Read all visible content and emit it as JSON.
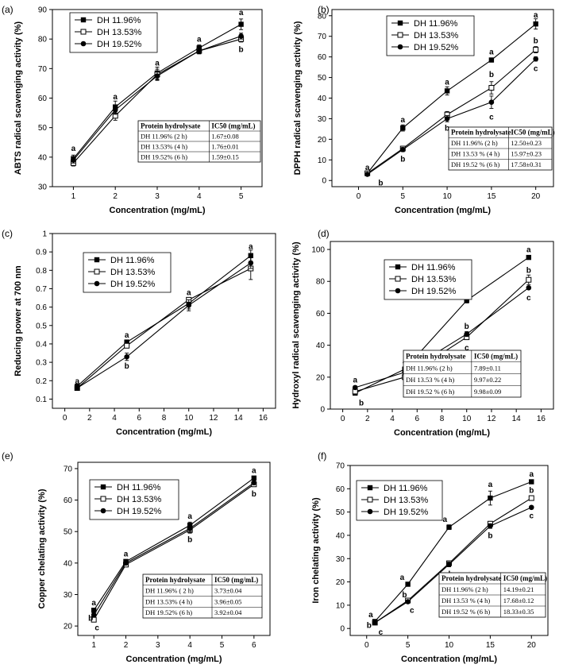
{
  "chart_data": [
    {
      "panel_label": "(a)",
      "type": "line",
      "xlabel": "Concentration (mg/mL)",
      "ylabel": "ABTS radical scavenging activity (%)",
      "xlim": [
        0.5,
        5.5
      ],
      "ylim": [
        30,
        90
      ],
      "xticks": [
        1,
        2,
        3,
        4,
        5
      ],
      "yticks": [
        30,
        40,
        50,
        60,
        70,
        80,
        90
      ],
      "x": [
        1,
        2,
        3,
        4,
        5
      ],
      "series": [
        {
          "name": "DH 11.96%",
          "marker": "square-filled",
          "values": [
            39.5,
            57,
            68.5,
            77,
            85
          ],
          "errors": [
            1.2,
            2,
            2,
            1,
            1.8
          ]
        },
        {
          "name": "DH 13.53%",
          "marker": "square-open",
          "values": [
            38,
            54,
            68,
            76,
            80
          ],
          "errors": [
            1,
            1.5,
            1.8,
            1,
            1
          ]
        },
        {
          "name": "DH 19.52%",
          "marker": "circle-filled",
          "values": [
            39,
            56,
            67.5,
            76,
            81
          ],
          "errors": [
            1,
            1.5,
            1.5,
            1,
            1
          ]
        }
      ],
      "sig_labels": [
        {
          "x": 1,
          "y": 43,
          "text": "a"
        },
        {
          "x": 2,
          "y": 60.5,
          "text": "a"
        },
        {
          "x": 3,
          "y": 72,
          "text": "a"
        },
        {
          "x": 4,
          "y": 80,
          "text": "a"
        },
        {
          "x": 5,
          "y": 89,
          "text": "a"
        },
        {
          "x": 5,
          "y": 76.5,
          "text": "b"
        }
      ],
      "legend": {
        "position": "top-left"
      },
      "table": {
        "position": "bottom-right",
        "headers": [
          "Protein hydrolysate",
          "IC50 (mg/mL)"
        ],
        "rows": [
          [
            "DH 11.96% (2 h)",
            "1.67±0.08"
          ],
          [
            "DH 13.53% (4 h)",
            "1.76±0.01"
          ],
          [
            "DH 19.52% (6 h)",
            "1.59±0.15"
          ]
        ]
      }
    },
    {
      "panel_label": "(b)",
      "type": "line",
      "xlabel": "Concentration (mg/mL)",
      "ylabel": "DPPH radical scavenging activity (%)",
      "xlim": [
        -3,
        22
      ],
      "ylim": [
        -3,
        83
      ],
      "xticks": [
        0,
        5,
        10,
        15,
        20
      ],
      "yticks": [
        0,
        10,
        20,
        30,
        40,
        50,
        60,
        70,
        80
      ],
      "x": [
        1,
        5,
        10,
        15,
        20
      ],
      "series": [
        {
          "name": "DH 11.96%",
          "marker": "square-filled",
          "values": [
            3.5,
            25.5,
            43.5,
            58.5,
            76
          ],
          "errors": [
            0.5,
            1.5,
            2,
            1,
            2.5
          ]
        },
        {
          "name": "DH 13.53%",
          "marker": "square-open",
          "values": [
            3.5,
            15.5,
            32,
            45,
            63.5
          ],
          "errors": [
            0.5,
            1,
            1.5,
            3,
            1.5
          ]
        },
        {
          "name": "DH 19.52%",
          "marker": "circle-filled",
          "values": [
            3,
            15,
            30,
            38,
            59
          ],
          "errors": [
            0.5,
            1,
            1.5,
            3,
            1
          ]
        }
      ],
      "sig_labels": [
        {
          "x": 1,
          "y": 6.5,
          "text": "a"
        },
        {
          "x": 2.5,
          "y": -1,
          "text": "b"
        },
        {
          "x": 5,
          "y": 29.5,
          "text": "a"
        },
        {
          "x": 5,
          "y": 10.5,
          "text": "b"
        },
        {
          "x": 10,
          "y": 48,
          "text": "a"
        },
        {
          "x": 10,
          "y": 25.5,
          "text": "b"
        },
        {
          "x": 15,
          "y": 62.5,
          "text": "a"
        },
        {
          "x": 15,
          "y": 51.5,
          "text": "b"
        },
        {
          "x": 15,
          "y": 31,
          "text": "c"
        },
        {
          "x": 20,
          "y": 80.5,
          "text": "a"
        },
        {
          "x": 20,
          "y": 68,
          "text": "b"
        },
        {
          "x": 20,
          "y": 54.5,
          "text": "c"
        }
      ],
      "legend": {
        "position": "top-left"
      },
      "table": {
        "position": "bottom-right",
        "headers": [
          "Protein hydrolysate",
          "IC50 (mg/mL)"
        ],
        "rows": [
          [
            "DH 11.96% (2 h)",
            "12.50±0.23"
          ],
          [
            "DH 13.53 % (4 h)",
            "15.97±0.23"
          ],
          [
            "DH 19.52 % (6 h)",
            "17.58±0.31"
          ]
        ]
      }
    },
    {
      "panel_label": "(c)",
      "type": "line",
      "xlabel": "Concentration (mg/mL)",
      "ylabel": "Reducing power at 700 nm",
      "xlim": [
        -1,
        17
      ],
      "ylim": [
        0.05,
        1.0
      ],
      "xticks": [
        0,
        2,
        4,
        6,
        8,
        10,
        12,
        14,
        16
      ],
      "yticks": [
        0.1,
        0.2,
        0.3,
        0.4,
        0.5,
        0.6,
        0.7,
        0.8,
        0.9,
        1.0
      ],
      "x": [
        1,
        5,
        10,
        15
      ],
      "series": [
        {
          "name": "DH 11.96%",
          "marker": "square-filled",
          "values": [
            0.17,
            0.41,
            0.62,
            0.88
          ],
          "errors": [
            0.01,
            0.01,
            0.03,
            0.03
          ]
        },
        {
          "name": "DH 13.53%",
          "marker": "square-open",
          "values": [
            0.16,
            0.39,
            0.64,
            0.81
          ],
          "errors": [
            0.01,
            0.01,
            0.01,
            0.06
          ]
        },
        {
          "name": "DH 19.52%",
          "marker": "circle-filled",
          "values": [
            0.16,
            0.33,
            0.61,
            0.84
          ],
          "errors": [
            0.01,
            0.02,
            0.03,
            0.03
          ]
        }
      ],
      "sig_labels": [
        {
          "x": 1,
          "y": 0.2,
          "text": "a"
        },
        {
          "x": 5,
          "y": 0.45,
          "text": "a"
        },
        {
          "x": 5,
          "y": 0.28,
          "text": "b"
        },
        {
          "x": 10,
          "y": 0.68,
          "text": "a"
        },
        {
          "x": 15,
          "y": 0.93,
          "text": "a"
        }
      ],
      "legend": {
        "position": "top-left"
      }
    },
    {
      "panel_label": "(d)",
      "type": "line",
      "xlabel": "Concentration (mg/mL)",
      "ylabel": "Hydroxyl radical scavenging activity (%)",
      "xlim": [
        -1,
        17
      ],
      "ylim": [
        0,
        105
      ],
      "xticks": [
        0,
        2,
        4,
        6,
        8,
        10,
        12,
        14,
        16
      ],
      "yticks": [
        0,
        20,
        40,
        60,
        80,
        100
      ],
      "x": [
        1,
        5,
        10,
        15
      ],
      "series": [
        {
          "name": "DH 11.96%",
          "marker": "square-filled",
          "values": [
            10,
            25,
            68,
            95
          ],
          "errors": [
            1,
            1.5,
            1.5,
            1
          ]
        },
        {
          "name": "DH 13.53%",
          "marker": "square-open",
          "values": [
            11,
            20,
            45,
            81
          ],
          "errors": [
            1,
            1,
            1.5,
            3
          ]
        },
        {
          "name": "DH 19.52%",
          "marker": "circle-filled",
          "values": [
            13.5,
            23,
            47,
            76
          ],
          "errors": [
            1,
            1.5,
            1.5,
            1
          ]
        }
      ],
      "sig_labels": [
        {
          "x": 1,
          "y": 18.5,
          "text": "a"
        },
        {
          "x": 1.5,
          "y": 4,
          "text": "b"
        },
        {
          "x": 5,
          "y": 30,
          "text": "a"
        },
        {
          "x": 6,
          "y": 14.5,
          "text": "b"
        },
        {
          "x": 10,
          "y": 74,
          "text": "a"
        },
        {
          "x": 10,
          "y": 52,
          "text": "b"
        },
        {
          "x": 10,
          "y": 38.5,
          "text": "c"
        },
        {
          "x": 15,
          "y": 100,
          "text": "a"
        },
        {
          "x": 15,
          "y": 87,
          "text": "b"
        },
        {
          "x": 15,
          "y": 70,
          "text": "c"
        }
      ],
      "legend": {
        "position": "top-left"
      },
      "table": {
        "position": "bottom-right",
        "headers": [
          "Protein hydrolysate",
          "IC50 (mg/mL)"
        ],
        "rows": [
          [
            "DH 11.96% (2 h)",
            "7.89±0.11"
          ],
          [
            "DH 13.53 % (4 h)",
            "9.97±0.22"
          ],
          [
            "DH 19.52 % (6 h)",
            "9.98±0.09"
          ]
        ]
      }
    },
    {
      "panel_label": "(e)",
      "type": "line",
      "xlabel": "Concentration (mg/mL)",
      "ylabel": "Copper chelating activity (%)",
      "xlim": [
        0.5,
        6.5
      ],
      "ylim": [
        17,
        72
      ],
      "xticks": [
        1,
        2,
        3,
        4,
        5,
        6
      ],
      "yticks": [
        20,
        30,
        40,
        50,
        60,
        70
      ],
      "x": [
        1,
        2,
        4,
        6
      ],
      "series": [
        {
          "name": "DH 11.96%",
          "marker": "square-filled",
          "values": [
            25,
            40.5,
            52,
            67
          ],
          "errors": [
            0.5,
            0.5,
            1,
            0.5
          ]
        },
        {
          "name": "DH 13.53%",
          "marker": "square-open",
          "values": [
            22,
            39.5,
            50.5,
            65
          ],
          "errors": [
            0.5,
            0.5,
            1,
            0.5
          ]
        },
        {
          "name": "DH 19.52%",
          "marker": "circle-filled",
          "values": [
            23.5,
            40,
            51,
            65.5
          ],
          "errors": [
            0.5,
            0.5,
            1,
            0.5
          ]
        }
      ],
      "sig_labels": [
        {
          "x": 1,
          "y": 27.5,
          "text": "a"
        },
        {
          "x": 0.9,
          "y": 22.5,
          "text": "b"
        },
        {
          "x": 1.1,
          "y": 19.5,
          "text": "c"
        },
        {
          "x": 2,
          "y": 43,
          "text": "a"
        },
        {
          "x": 4,
          "y": 55,
          "text": "a"
        },
        {
          "x": 4,
          "y": 47.5,
          "text": "b"
        },
        {
          "x": 6,
          "y": 69.5,
          "text": "a"
        },
        {
          "x": 6,
          "y": 62,
          "text": "b"
        }
      ],
      "legend": {
        "position": "top-left"
      },
      "table": {
        "position": "bottom-right",
        "headers": [
          "Protein hydrolysate",
          "IC50 (mg/mL)"
        ],
        "rows": [
          [
            "DH 11.96% ( 2 h)",
            "3.73±0.04"
          ],
          [
            "DH 13.53% (4 h)",
            "3.96±0.05"
          ],
          [
            "DH 19.52% (6 h)",
            "3.92±0.04"
          ]
        ]
      }
    },
    {
      "panel_label": "(f)",
      "type": "line",
      "xlabel": "Concentration (mg/mL)",
      "ylabel": "Iron chelating activity (%)",
      "xlim": [
        -2,
        22
      ],
      "ylim": [
        -3,
        70
      ],
      "xticks": [
        0,
        5,
        10,
        15,
        20
      ],
      "yticks": [
        0,
        10,
        20,
        30,
        40,
        50,
        60,
        70
      ],
      "x": [
        1,
        5,
        10,
        15,
        20
      ],
      "series": [
        {
          "name": "DH 11.96%",
          "marker": "square-filled",
          "values": [
            3,
            19,
            43.5,
            56,
            63
          ],
          "errors": [
            0.5,
            0.5,
            1,
            3,
            0.5
          ]
        },
        {
          "name": "DH 13.53%",
          "marker": "square-open",
          "values": [
            2.5,
            12,
            28,
            45,
            56
          ],
          "errors": [
            0.5,
            0.5,
            1,
            1,
            0.5
          ]
        },
        {
          "name": "DH 19.52%",
          "marker": "circle-filled",
          "values": [
            2.5,
            11.5,
            27.5,
            44,
            52
          ],
          "errors": [
            0.5,
            0.5,
            1,
            1,
            0.5
          ]
        }
      ],
      "sig_labels": [
        {
          "x": 0.5,
          "y": 6,
          "text": "a"
        },
        {
          "x": 0.3,
          "y": 1.5,
          "text": "b"
        },
        {
          "x": 1.7,
          "y": -1.5,
          "text": "c"
        },
        {
          "x": 4.3,
          "y": 22,
          "text": "a"
        },
        {
          "x": 4.6,
          "y": 14.5,
          "text": "b"
        },
        {
          "x": 5.5,
          "y": 8,
          "text": "c"
        },
        {
          "x": 9.5,
          "y": 47,
          "text": "a"
        },
        {
          "x": 10.2,
          "y": 23.5,
          "text": "b"
        },
        {
          "x": 15,
          "y": 62,
          "text": "a"
        },
        {
          "x": 15,
          "y": 40,
          "text": "b"
        },
        {
          "x": 20,
          "y": 66.5,
          "text": "a"
        },
        {
          "x": 20,
          "y": 59.5,
          "text": "b"
        },
        {
          "x": 20,
          "y": 48.5,
          "text": "c"
        }
      ],
      "legend": {
        "position": "top-left"
      },
      "table": {
        "position": "bottom-right",
        "headers": [
          "Protein hydrolysate",
          "IC50 (mg/mL)"
        ],
        "rows": [
          [
            "DH 11.96% (2 h)",
            "14.19±0.21"
          ],
          [
            "DH 13.53 % (4 h)",
            "17.68±0.12"
          ],
          [
            "DH 19.52 % (6 h)",
            "18.33±0.35"
          ]
        ]
      }
    }
  ]
}
